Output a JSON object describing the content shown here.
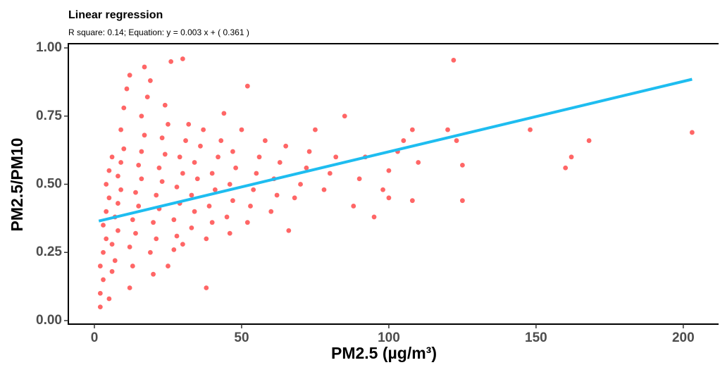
{
  "chart_data": {
    "type": "scatter",
    "title": "Linear regression",
    "subtitle": "R square: 0.14; Equation: y =  0.003 x + ( 0.361 )",
    "x_label": "PM2.5 (µg/m³)",
    "y_label": "PM2.5/PM10",
    "xlim": [
      -8.85,
      212
    ],
    "ylim": [
      -0.013,
      1.0155
    ],
    "xticks": [
      0,
      50,
      100,
      150,
      200
    ],
    "yticks": [
      {
        "value": 0,
        "label": "0.00"
      },
      {
        "value": 0.25,
        "label": "0.25"
      },
      {
        "value": 0.5,
        "label": "0.50"
      },
      {
        "value": 0.75,
        "label": "0.75"
      },
      {
        "value": 1,
        "label": "1.00"
      }
    ],
    "x": [
      2,
      2,
      3,
      2,
      3,
      4,
      3,
      4,
      5,
      4,
      5,
      6,
      5,
      6,
      7,
      6,
      8,
      7,
      8,
      9,
      8,
      9,
      10,
      9,
      10,
      11,
      12,
      12,
      13,
      12,
      14,
      13,
      15,
      14,
      16,
      15,
      16,
      17,
      16,
      18,
      17,
      19,
      20,
      19,
      21,
      20,
      22,
      21,
      23,
      22,
      24,
      23,
      25,
      24,
      26,
      30,
      25,
      27,
      28,
      27,
      29,
      28,
      30,
      29,
      31,
      32,
      30,
      33,
      34,
      33,
      35,
      34,
      36,
      37,
      38,
      38,
      40,
      39,
      41,
      40,
      42,
      43,
      44,
      46,
      45,
      47,
      46,
      48,
      47,
      50,
      52,
      52,
      53,
      54,
      55,
      56,
      58,
      60,
      62,
      61,
      63,
      65,
      66,
      68,
      70,
      72,
      73,
      75,
      78,
      80,
      82,
      85,
      88,
      90,
      92,
      95,
      98,
      100,
      100,
      103,
      105,
      108,
      108,
      110,
      120,
      122,
      123,
      125,
      125,
      148,
      160,
      162,
      168,
      203
    ],
    "series": [
      {
        "color": "#ff0000",
        "values": [
          0.05,
          0.1,
          0.15,
          0.2,
          0.25,
          0.3,
          0.35,
          0.4,
          0.45,
          0.5,
          0.55,
          0.6,
          0.08,
          0.18,
          0.22,
          0.28,
          0.33,
          0.38,
          0.43,
          0.48,
          0.53,
          0.58,
          0.63,
          0.7,
          0.78,
          0.85,
          0.9,
          0.12,
          0.2,
          0.27,
          0.32,
          0.37,
          0.42,
          0.47,
          0.52,
          0.57,
          0.62,
          0.68,
          0.75,
          0.82,
          0.93,
          0.88,
          0.17,
          0.25,
          0.3,
          0.36,
          0.41,
          0.46,
          0.51,
          0.56,
          0.61,
          0.67,
          0.72,
          0.79,
          0.95,
          0.96,
          0.2,
          0.26,
          0.31,
          0.37,
          0.43,
          0.49,
          0.54,
          0.6,
          0.66,
          0.72,
          0.28,
          0.34,
          0.4,
          0.46,
          0.52,
          0.58,
          0.64,
          0.7,
          0.12,
          0.3,
          0.36,
          0.42,
          0.48,
          0.54,
          0.6,
          0.66,
          0.76,
          0.32,
          0.38,
          0.44,
          0.5,
          0.56,
          0.62,
          0.7,
          0.86,
          0.36,
          0.42,
          0.48,
          0.54,
          0.6,
          0.66,
          0.4,
          0.46,
          0.52,
          0.58,
          0.64,
          0.33,
          0.45,
          0.5,
          0.56,
          0.62,
          0.7,
          0.48,
          0.54,
          0.6,
          0.75,
          0.42,
          0.52,
          0.6,
          0.38,
          0.48,
          0.55,
          0.45,
          0.62,
          0.66,
          0.7,
          0.44,
          0.58,
          0.7,
          0.955,
          0.66,
          0.57,
          0.44,
          0.7,
          0.56,
          0.6,
          0.66,
          0.69
        ]
      }
    ],
    "fit": {
      "color": "#1ebdf0",
      "x": [
        1.5,
        203
      ],
      "values": [
        0.365,
        0.885
      ]
    }
  }
}
